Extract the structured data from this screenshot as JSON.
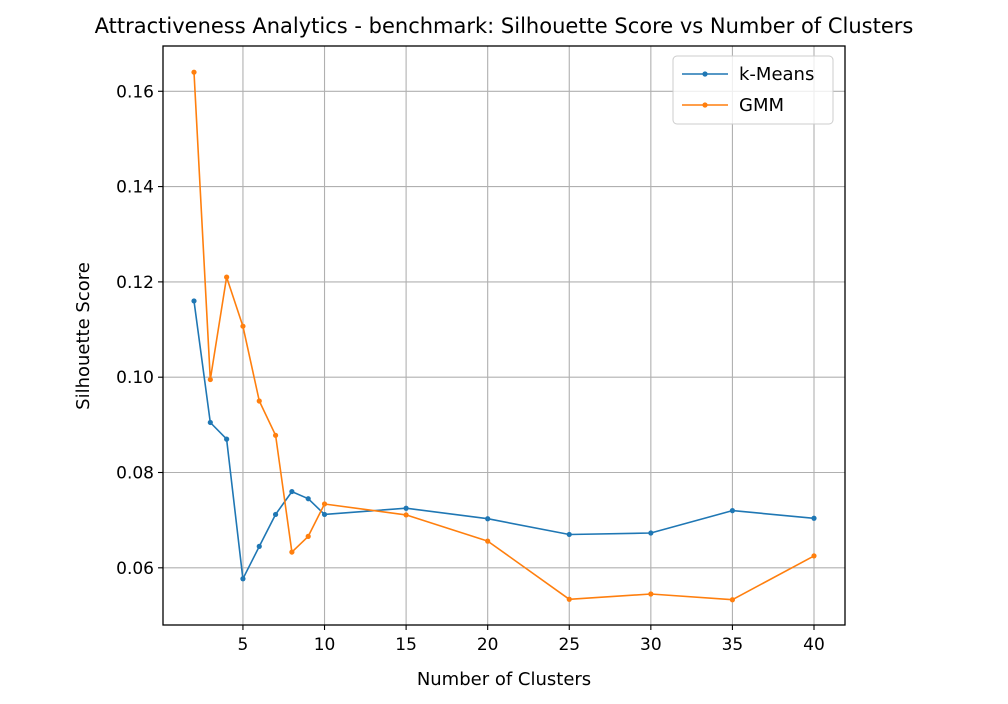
{
  "chart_data": {
    "type": "line",
    "title": "Attractiveness Analytics - benchmark: Silhouette Score vs Number of Clusters",
    "xlabel": "Number of Clusters",
    "ylabel": "Silhouette Score",
    "xlim": [
      0.1,
      41.9
    ],
    "ylim": [
      0.048,
      0.1695
    ],
    "xticks": [
      5,
      10,
      15,
      20,
      25,
      30,
      35,
      40
    ],
    "xtick_labels": [
      "5",
      "10",
      "15",
      "20",
      "25",
      "30",
      "35",
      "40"
    ],
    "yticks": [
      0.06,
      0.08,
      0.1,
      0.12,
      0.14,
      0.16
    ],
    "ytick_labels": [
      "0.06",
      "0.08",
      "0.10",
      "0.12",
      "0.14",
      "0.16"
    ],
    "grid": true,
    "legend_position": "top-right",
    "x": [
      2,
      3,
      4,
      5,
      6,
      7,
      8,
      9,
      10,
      15,
      20,
      25,
      30,
      35,
      40
    ],
    "series": [
      {
        "name": "k-Means",
        "color": "#1f77b4",
        "values": [
          0.116,
          0.0905,
          0.087,
          0.0577,
          0.0645,
          0.0712,
          0.076,
          0.0745,
          0.0712,
          0.0725,
          0.0703,
          0.067,
          0.0673,
          0.072,
          0.0704
        ]
      },
      {
        "name": "GMM",
        "color": "#ff7f0e",
        "values": [
          0.164,
          0.0995,
          0.121,
          0.1107,
          0.095,
          0.0878,
          0.0633,
          0.0666,
          0.0734,
          0.0711,
          0.0656,
          0.0534,
          0.0545,
          0.0533,
          0.0625
        ]
      }
    ]
  }
}
